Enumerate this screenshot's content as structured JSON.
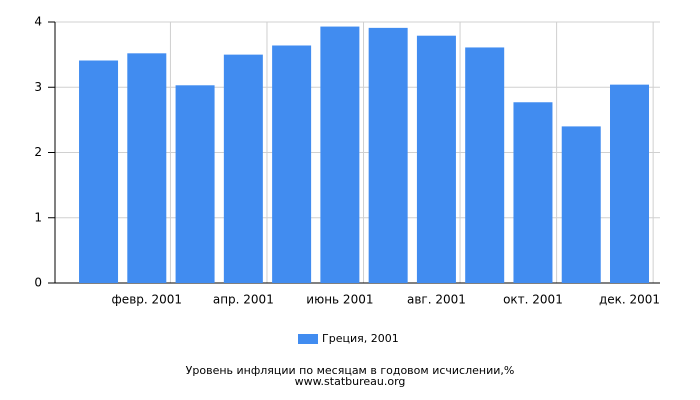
{
  "chart_data": {
    "type": "bar",
    "title": "Уровень инфляции по месяцам в годовом исчислении,%",
    "source": "www.statbureau.org",
    "categories": [
      null,
      "февр. 2001",
      null,
      "апр. 2001",
      null,
      "июнь 2001",
      null,
      "авг. 2001",
      null,
      "окт. 2001",
      null,
      "дек. 2001"
    ],
    "series": [
      {
        "name": "Греция, 2001",
        "color": "#418cf0",
        "values": [
          3.41,
          3.52,
          3.03,
          3.5,
          3.64,
          3.93,
          3.91,
          3.79,
          3.61,
          2.77,
          2.4,
          3.04
        ]
      }
    ],
    "ylim": [
      0,
      4
    ],
    "yticks": [
      0,
      1,
      2,
      3,
      4
    ],
    "grid": true
  }
}
